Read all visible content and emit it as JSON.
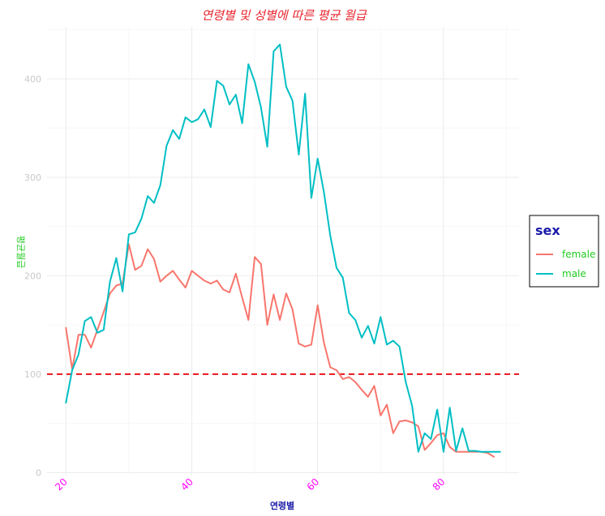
{
  "chart_data": {
    "type": "line",
    "title": "연령별 및 성별에 따른 평균 월급",
    "xlabel": "연령별",
    "ylabel": "평균월급",
    "xlim": [
      17,
      92
    ],
    "ylim": [
      -3,
      453
    ],
    "x_ticks": [
      20,
      40,
      60,
      80
    ],
    "y_ticks": [
      0,
      100,
      200,
      300,
      400
    ],
    "grid": true,
    "legend": {
      "title": "sex",
      "position": "right"
    },
    "reference_line": {
      "y": 100,
      "color": "#e8141e",
      "style": "dashed"
    },
    "series": [
      {
        "name": "female",
        "color": "#f8766d",
        "x": [
          20,
          21,
          22,
          23,
          24,
          25,
          26,
          27,
          28,
          29,
          30,
          31,
          32,
          33,
          34,
          35,
          36,
          37,
          38,
          39,
          40,
          41,
          42,
          43,
          44,
          45,
          46,
          47,
          48,
          49,
          50,
          51,
          52,
          53,
          54,
          55,
          56,
          57,
          58,
          59,
          60,
          61,
          62,
          63,
          64,
          65,
          66,
          67,
          68,
          69,
          70,
          71,
          72,
          73,
          74,
          75,
          76,
          77,
          78,
          79,
          80,
          81,
          82,
          83,
          84,
          85,
          86,
          87,
          88
        ],
        "y": [
          147,
          105,
          140,
          140,
          127,
          145,
          163,
          182,
          190,
          192,
          232,
          206,
          210,
          227,
          217,
          194,
          200,
          205,
          196,
          188,
          205,
          200,
          195,
          192,
          195,
          186,
          183,
          202,
          178,
          155,
          219,
          212,
          150,
          181,
          155,
          182,
          166,
          131,
          128,
          130,
          170,
          132,
          107,
          104,
          95,
          97,
          92,
          84,
          77,
          88,
          58,
          69,
          40,
          52,
          53,
          51,
          47,
          23,
          30,
          38,
          40,
          26,
          21,
          21,
          21,
          21,
          21,
          20,
          16
        ]
      },
      {
        "name": "male",
        "color": "#00bfc4",
        "x": [
          20,
          21,
          22,
          23,
          24,
          25,
          26,
          27,
          28,
          29,
          30,
          31,
          32,
          33,
          34,
          35,
          36,
          37,
          38,
          39,
          40,
          41,
          42,
          43,
          44,
          45,
          46,
          47,
          48,
          49,
          50,
          51,
          52,
          53,
          54,
          55,
          56,
          57,
          58,
          59,
          60,
          61,
          62,
          63,
          64,
          65,
          66,
          67,
          68,
          69,
          70,
          71,
          72,
          73,
          74,
          75,
          76,
          77,
          78,
          79,
          80,
          81,
          82,
          83,
          84,
          85,
          86,
          87,
          88,
          89
        ],
        "y": [
          71,
          104,
          120,
          154,
          158,
          142,
          145,
          194,
          218,
          184,
          242,
          244,
          258,
          281,
          274,
          292,
          332,
          348,
          339,
          361,
          356,
          359,
          369,
          351,
          398,
          393,
          374,
          384,
          355,
          415,
          397,
          371,
          331,
          428,
          435,
          392,
          378,
          323,
          385,
          279,
          319,
          285,
          241,
          208,
          198,
          162,
          155,
          137,
          149,
          131,
          158,
          130,
          134,
          128,
          92,
          68,
          21,
          40,
          34,
          64,
          21,
          66,
          22,
          45,
          22,
          22,
          21,
          21,
          21,
          21
        ]
      }
    ]
  }
}
